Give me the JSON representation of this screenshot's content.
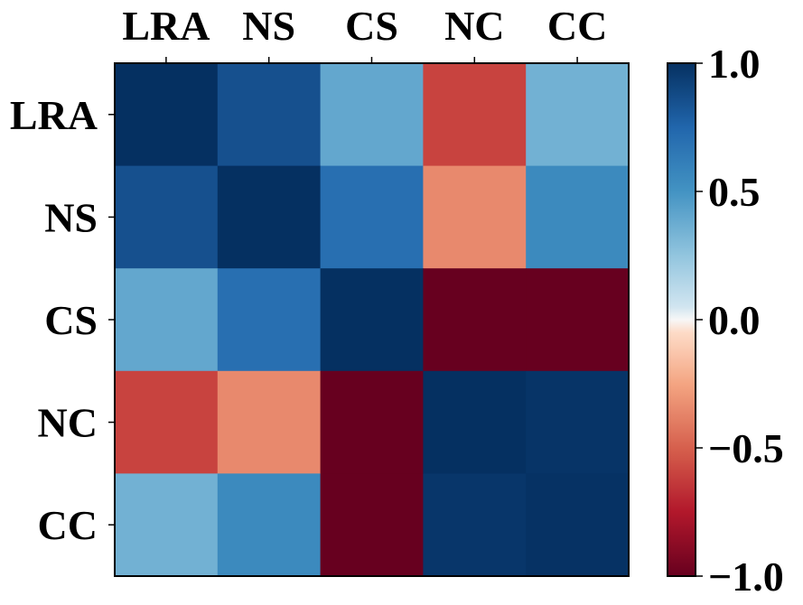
{
  "chart_data": {
    "type": "heatmap",
    "title": "",
    "xlabel": "",
    "ylabel": "",
    "x_labels": [
      "LRA",
      "NS",
      "CS",
      "NC",
      "CC"
    ],
    "y_labels": [
      "LRA",
      "NS",
      "CS",
      "NC",
      "CC"
    ],
    "values": [
      [
        1.0,
        0.85,
        0.4,
        -0.6,
        0.35
      ],
      [
        0.85,
        1.0,
        0.7,
        -0.35,
        0.55
      ],
      [
        0.4,
        0.7,
        1.0,
        -1.0,
        -1.0
      ],
      [
        -0.6,
        -0.35,
        -1.0,
        1.0,
        0.98
      ],
      [
        0.35,
        0.55,
        -1.0,
        0.97,
        0.99
      ]
    ],
    "colormap": "RdBu",
    "color_range": [
      -1.0,
      1.0
    ],
    "colorbar_ticks": [
      1.0,
      0.5,
      0.0,
      -0.5,
      -1.0
    ],
    "colorbar_tick_labels": [
      "1.0",
      "0.5",
      "0.0",
      "−0.5",
      "−1.0"
    ]
  }
}
